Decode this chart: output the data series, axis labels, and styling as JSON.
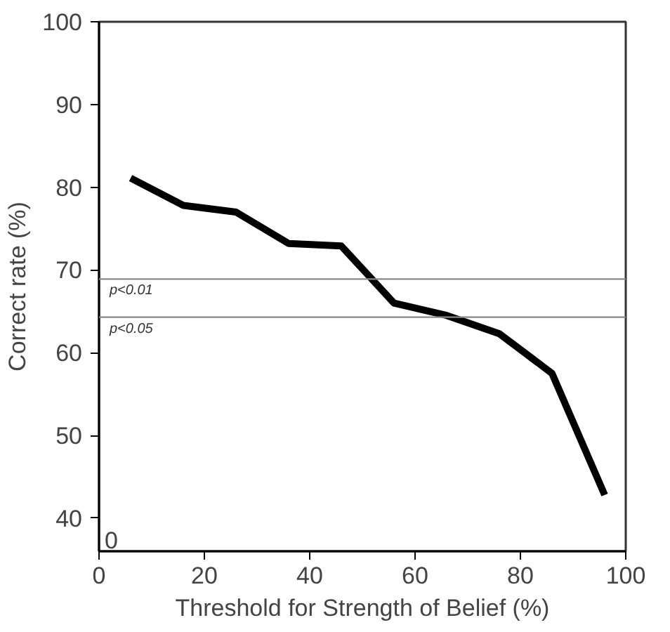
{
  "chart_data": {
    "type": "line",
    "xlabel": "Threshold for Strength of Belief (%)",
    "ylabel": "Correct rate (%)",
    "x": [
      6,
      16,
      26,
      36,
      46,
      56,
      66,
      76,
      86,
      96
    ],
    "series": [
      {
        "color": "#000000",
        "values": [
          81.1,
          77.8,
          77.0,
          73.2,
          72.9,
          66.0,
          64.5,
          62.3,
          57.5,
          42.8
        ]
      }
    ],
    "xlim": [
      0,
      100
    ],
    "xticks": [
      0,
      20,
      40,
      60,
      80,
      100
    ],
    "ylim": [
      36,
      100
    ],
    "yticks": [
      40,
      50,
      60,
      70,
      80,
      90,
      100
    ],
    "annotations": [
      "0"
    ],
    "ref_lines": [
      {
        "axis": "y",
        "value": 68.9,
        "label": "p<0.01",
        "color": "#888888"
      },
      {
        "axis": "y",
        "value": 64.3,
        "label": "p<0.05",
        "color": "#888888"
      }
    ],
    "grid": false,
    "marker": "none",
    "line_style": "solid"
  }
}
